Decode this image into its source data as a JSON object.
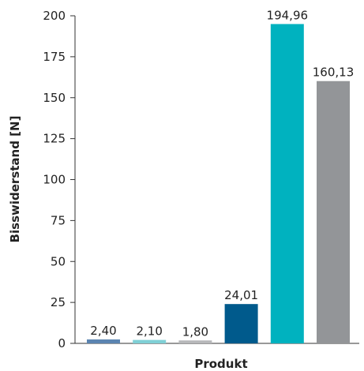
{
  "chart_data": {
    "type": "bar",
    "categories": [
      "",
      "",
      "",
      "",
      "",
      ""
    ],
    "values": [
      2.4,
      2.1,
      1.8,
      24.01,
      194.96,
      160.13
    ],
    "data_labels": [
      "2,40",
      "2,10",
      "1,80",
      "24,01",
      "194,96",
      "160,13"
    ],
    "colors": [
      "#5b84b1",
      "#7fd0d6",
      "#b7b8ba",
      "#005a8c",
      "#00b2bf",
      "#939598"
    ],
    "xlabel": "Produkt",
    "ylabel": "Bisswiderstand [N]",
    "ylim": [
      0,
      200
    ],
    "yticks": [
      0,
      25,
      50,
      75,
      100,
      125,
      150,
      175,
      200
    ],
    "ytick_labels": [
      "0",
      "25",
      "50",
      "75",
      "100",
      "125",
      "150",
      "175",
      "200"
    ],
    "grid": false,
    "legend": "none"
  }
}
